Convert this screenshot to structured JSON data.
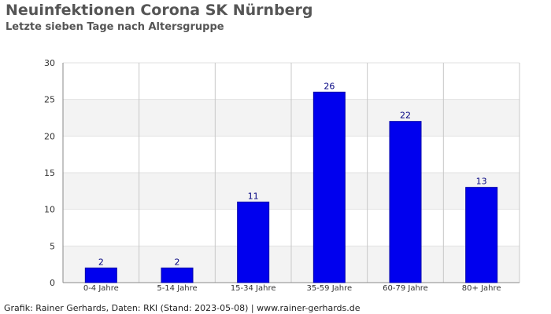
{
  "header": {
    "title": "Neuinfektionen Corona SK Nürnberg",
    "subtitle": "Letzte sieben Tage nach Altersgruppe"
  },
  "footer": {
    "text": "Grafik: Rainer Gerhards, Daten: RKI (Stand: 2023-05-08) | www.rainer-gerhards.de"
  },
  "chart_data": {
    "type": "bar",
    "title": "Neuinfektionen Corona SK Nürnberg",
    "subtitle": "Letzte sieben Tage nach Altersgruppe",
    "xlabel": "",
    "ylabel": "",
    "categories": [
      "0-4 Jahre",
      "5-14 Jahre",
      "15-34 Jahre",
      "35-59 Jahre",
      "60-79 Jahre",
      "80+ Jahre"
    ],
    "values": [
      2,
      2,
      11,
      26,
      22,
      13
    ],
    "data_labels": [
      "2",
      "2",
      "11",
      "26",
      "22",
      "13"
    ],
    "ylim": [
      0,
      30
    ],
    "yticks": [
      "0",
      "5",
      "10",
      "15",
      "20",
      "25",
      "30"
    ],
    "grid": true,
    "bar_color": "#0000ee",
    "label_color": "#000080",
    "band_color": "#f3f3f3"
  }
}
